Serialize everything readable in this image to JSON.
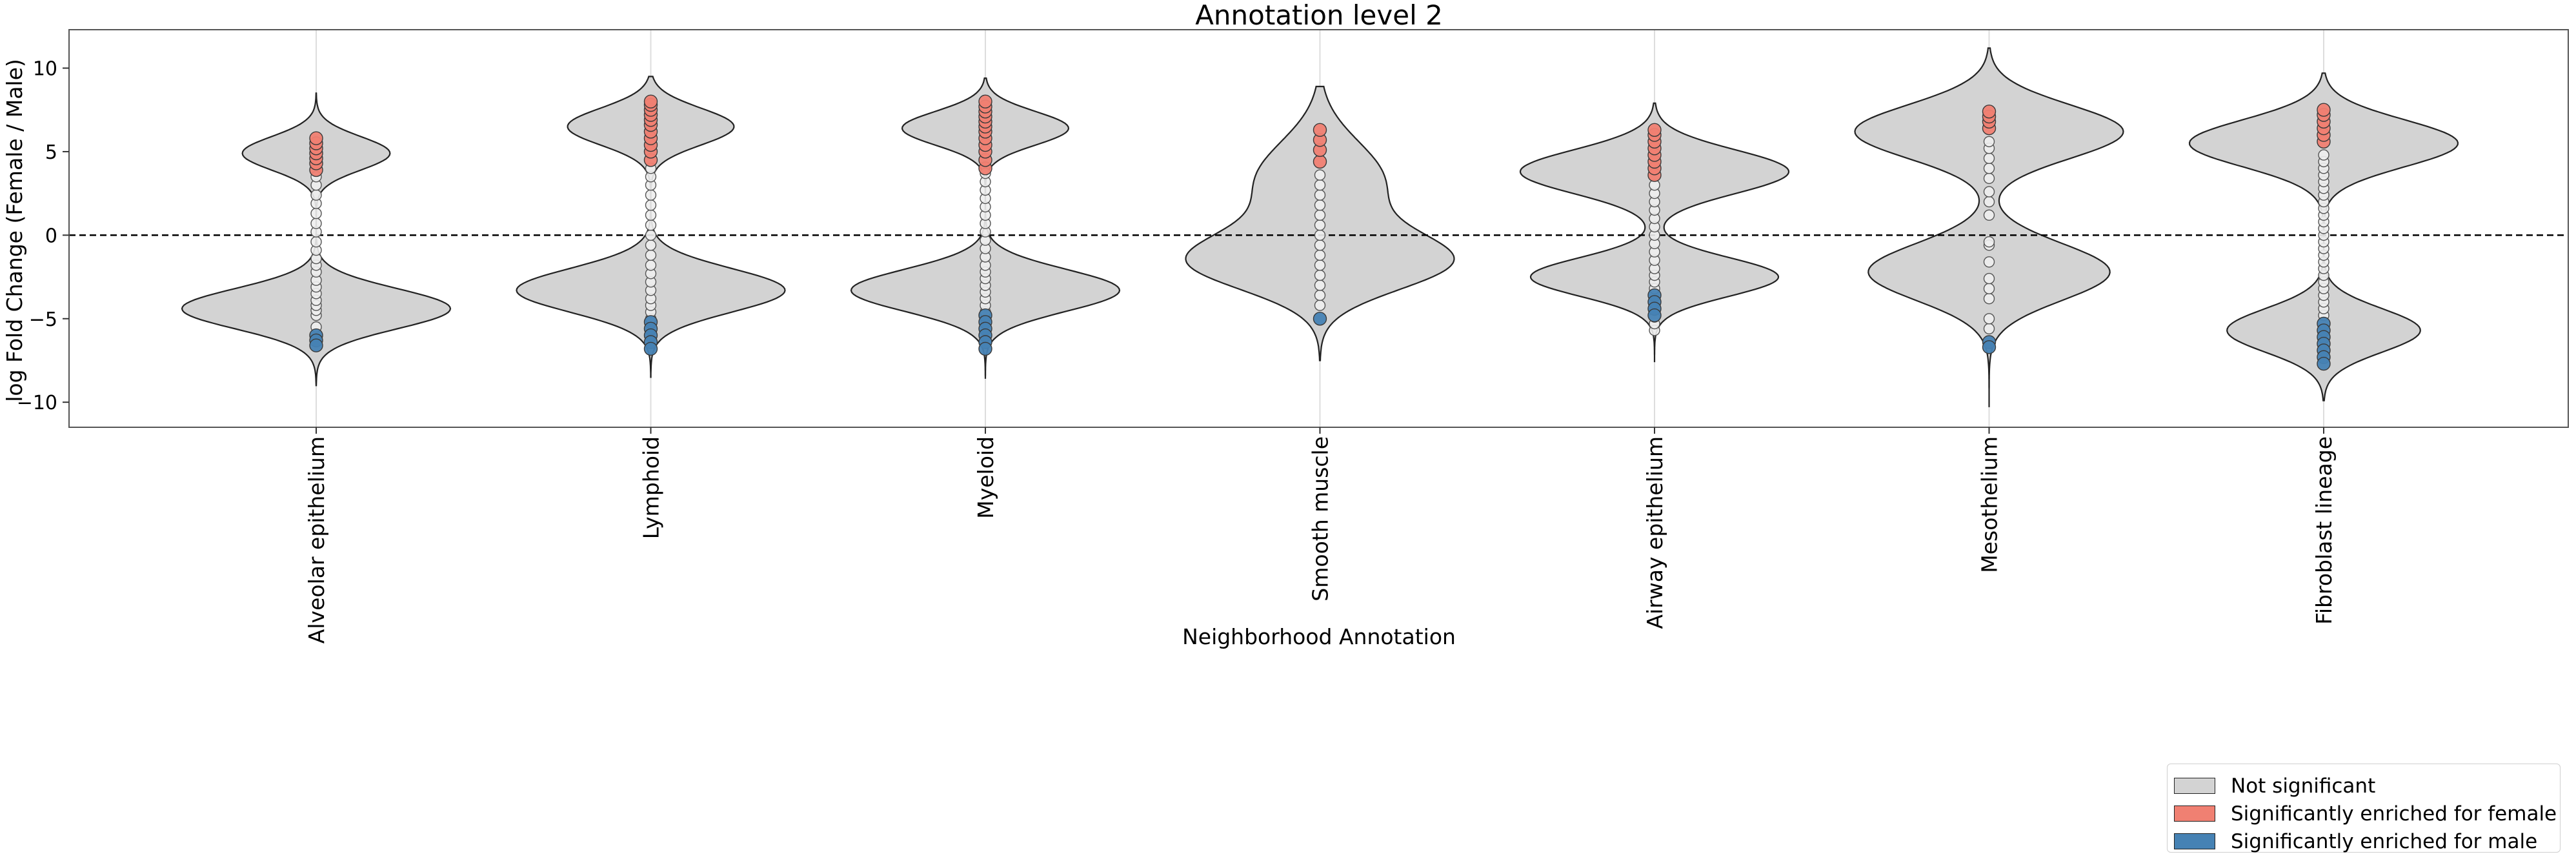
{
  "chart_data": {
    "type": "violin",
    "title": "Annotation level 2",
    "xlabel": "Neighborhood Annotation",
    "ylabel": "log Fold Change (Female / Male)",
    "ylim": [
      -11.5,
      12.3
    ],
    "yticks": [
      -10,
      -5,
      0,
      5,
      10
    ],
    "grid": "vertical",
    "reference_line": 0,
    "legend_position": "bottom-right",
    "colors": {
      "not_significant": "#d3d3d3",
      "female": "#f08072",
      "male": "#4682b4"
    },
    "legend": [
      {
        "key": "not_significant",
        "label": "Not significant"
      },
      {
        "key": "female",
        "label": "Significantly enriched for female"
      },
      {
        "key": "male",
        "label": "Significantly enriched for male"
      }
    ],
    "categories": [
      {
        "name": "Alveolar epithelium",
        "range": [
          -9.0,
          8.5
        ],
        "modes": [
          [
            -4.4,
            1.2,
            1.0
          ],
          [
            4.9,
            1.0,
            0.55
          ]
        ],
        "points": {
          "not_significant": [
            -5.5,
            -4.8,
            -4.5,
            -4.2,
            -3.9,
            -3.5,
            -3.1,
            -2.7,
            -2.2,
            -1.8,
            -1.4,
            -0.9,
            -0.4,
            0.2,
            0.7,
            1.3,
            1.9,
            2.4,
            3.0,
            3.5
          ],
          "female": [
            3.9,
            4.3,
            4.6,
            4.9,
            5.2,
            5.5,
            5.8
          ],
          "male": [
            -6.0,
            -6.3,
            -6.6
          ]
        }
      },
      {
        "name": "Lymphoid",
        "range": [
          -8.5,
          9.5
        ],
        "modes": [
          [
            -3.3,
            1.3,
            1.0
          ],
          [
            6.5,
            1.1,
            0.62
          ]
        ],
        "points": {
          "not_significant": [
            -5.0,
            -4.6,
            -4.2,
            -3.8,
            -3.3,
            -2.8,
            -2.3,
            -1.8,
            -1.2,
            -0.6,
            0.0,
            0.6,
            1.2,
            1.8,
            2.4,
            3.0,
            3.5,
            4.0
          ],
          "female": [
            4.5,
            5.0,
            5.4,
            5.8,
            6.2,
            6.6,
            6.9,
            7.2,
            7.5,
            7.8,
            8.0
          ],
          "male": [
            -5.2,
            -5.6,
            -6.0,
            -6.4,
            -6.8
          ]
        }
      },
      {
        "name": "Myeloid",
        "range": [
          -8.6,
          9.4
        ],
        "modes": [
          [
            -3.3,
            1.25,
            1.0
          ],
          [
            6.4,
            1.0,
            0.62
          ]
        ],
        "points": {
          "not_significant": [
            -5.0,
            -4.6,
            -4.2,
            -3.8,
            -3.4,
            -3.0,
            -2.6,
            -2.2,
            -1.8,
            -1.3,
            -0.8,
            -0.3,
            0.2,
            0.7,
            1.2,
            1.7,
            2.2,
            2.7,
            3.2,
            3.7
          ],
          "female": [
            4.0,
            4.5,
            5.0,
            5.4,
            5.8,
            6.2,
            6.5,
            6.8,
            7.1,
            7.4,
            7.7,
            8.0
          ],
          "male": [
            -4.8,
            -5.2,
            -5.6,
            -6.0,
            -6.4,
            -6.8
          ]
        }
      },
      {
        "name": "Smooth muscle",
        "range": [
          -7.5,
          8.9
        ],
        "modes": [
          [
            -1.6,
            1.7,
            0.82
          ],
          [
            3.2,
            2.4,
            0.42
          ]
        ],
        "points": {
          "not_significant": [
            -4.2,
            -3.6,
            -3.0,
            -2.4,
            -1.8,
            -1.2,
            -0.6,
            0.0,
            0.6,
            1.2,
            1.8,
            2.4,
            3.0,
            3.6
          ],
          "female": [
            4.4,
            5.1,
            5.7,
            6.3
          ],
          "male": [
            -5.0
          ]
        }
      },
      {
        "name": "Airway epithelium",
        "range": [
          -7.6,
          7.9
        ],
        "modes": [
          [
            -2.5,
            1.15,
            0.72
          ],
          [
            3.8,
            1.3,
            0.78
          ]
        ],
        "points": {
          "not_significant": [
            -5.7,
            -5.3,
            -4.9,
            -4.5,
            -3.2,
            -2.8,
            -2.4,
            -2.0,
            -1.5,
            -1.0,
            -0.5,
            0.0,
            0.5,
            1.0,
            1.5,
            2.0,
            2.5,
            3.0
          ],
          "female": [
            3.6,
            4.0,
            4.4,
            4.8,
            5.2,
            5.6,
            6.0,
            6.3
          ],
          "male": [
            -3.6,
            -4.0,
            -4.4,
            -4.8
          ]
        }
      },
      {
        "name": "Mesothelium",
        "range": [
          -10.3,
          11.2
        ],
        "modes": [
          [
            -2.2,
            1.7,
            0.9
          ],
          [
            6.2,
            1.6,
            1.0
          ]
        ],
        "points": {
          "not_significant": [
            -5.6,
            -5.0,
            -3.8,
            -3.2,
            -2.6,
            -1.6,
            -0.6,
            -0.4,
            1.2,
            2.0,
            2.6,
            3.4,
            4.0,
            4.6,
            5.2,
            5.6
          ],
          "female": [
            6.4,
            6.8,
            7.1,
            7.4
          ],
          "male": [
            -6.4,
            -6.7
          ]
        }
      },
      {
        "name": "Fibroblast lineage",
        "range": [
          -9.9,
          9.7
        ],
        "modes": [
          [
            -5.7,
            1.3,
            0.72
          ],
          [
            5.5,
            1.4,
            1.0
          ]
        ],
        "points": {
          "not_significant": [
            -4.8,
            -4.4,
            -4.0,
            -3.6,
            -3.2,
            -2.8,
            -2.4,
            -2.0,
            -1.6,
            -1.2,
            -0.8,
            -0.4,
            0.0,
            0.4,
            0.8,
            1.2,
            1.6,
            2.0,
            2.4,
            2.8,
            3.2,
            3.6,
            4.0,
            4.4,
            4.8
          ],
          "female": [
            5.6,
            6.0,
            6.4,
            6.8,
            7.2,
            7.5
          ],
          "male": [
            -5.3,
            -5.7,
            -6.1,
            -6.5,
            -6.9,
            -7.3,
            -7.7
          ]
        }
      }
    ]
  }
}
